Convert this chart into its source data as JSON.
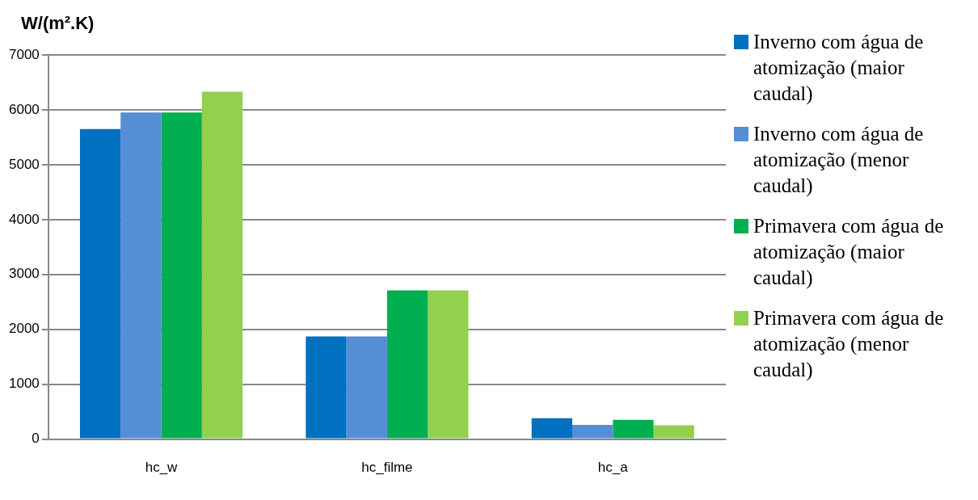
{
  "chart_data": {
    "type": "bar",
    "ylabel": "W/(m².K)",
    "categories": [
      "hc_w",
      "hc_filme",
      "hc_a"
    ],
    "series": [
      {
        "name": "Inverno com água de atomização (maior caudal)",
        "color": "#0070c0",
        "values": [
          5650,
          1870,
          380
        ]
      },
      {
        "name": "Inverno com água de atomização (menor caudal)",
        "color": "#558ed5",
        "values": [
          5950,
          1870,
          260
        ]
      },
      {
        "name": "Primavera com água de atomização (maior caudal)",
        "color": "#00b050",
        "values": [
          5950,
          2710,
          350
        ]
      },
      {
        "name": "Primavera com água de atomização (menor caudal)",
        "color": "#92d050",
        "values": [
          6330,
          2710,
          250
        ]
      }
    ],
    "ylim": [
      0,
      7000
    ],
    "yticks": [
      0,
      1000,
      2000,
      3000,
      4000,
      5000,
      6000,
      7000
    ],
    "grid": "y",
    "legend": "right"
  }
}
